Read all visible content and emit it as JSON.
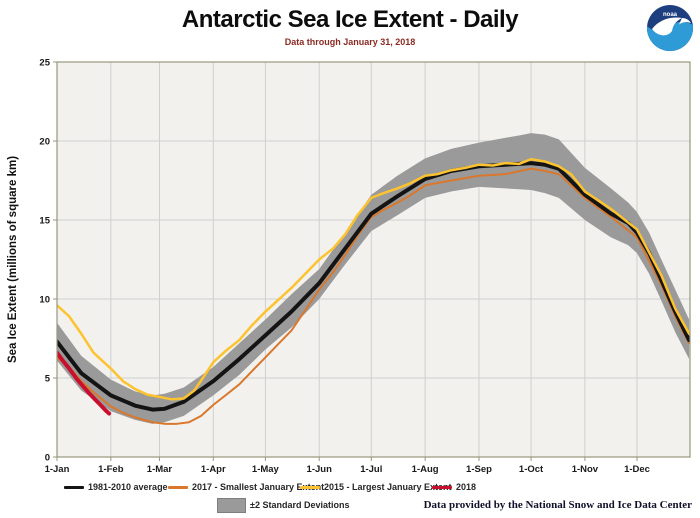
{
  "header": {
    "logo_text": "noaa"
  },
  "footer": {
    "credit": "Data provided by the National Snow and Ice Data Center"
  },
  "colors": {
    "plot_bg": "#f2f1ee",
    "grid": "#cfcfcf",
    "border": "#98987c",
    "band": "#9a9a9a",
    "avg": "#141414",
    "y2017": "#d9782d",
    "y2015": "#fdc32f",
    "y2018": "#c8102e",
    "subtitle": "#8a2a24",
    "logo_dark_blue": "#1e3f7f",
    "logo_light_blue": "#2e9bd6"
  },
  "chart_data": {
    "type": "line",
    "title": "Antarctic Sea Ice Extent - Daily",
    "subtitle": "Data through January 31, 2018",
    "xlabel": "",
    "ylabel": "Sea Ice Extent (millions of square km)",
    "ylim": [
      0,
      25
    ],
    "yticks": [
      0,
      5,
      10,
      15,
      20,
      25
    ],
    "x_unit": "day_of_year",
    "xlim_days": [
      1,
      365.5
    ],
    "xticks": [
      {
        "day": 1,
        "label": "1-Jan"
      },
      {
        "day": 32,
        "label": "1-Feb"
      },
      {
        "day": 60,
        "label": "1-Mar"
      },
      {
        "day": 91,
        "label": "1-Apr"
      },
      {
        "day": 121,
        "label": "1-May"
      },
      {
        "day": 152,
        "label": "1-Jun"
      },
      {
        "day": 182,
        "label": "1-Jul"
      },
      {
        "day": 213,
        "label": "1-Aug"
      },
      {
        "day": 244,
        "label": "1-Sep"
      },
      {
        "day": 274,
        "label": "1-Oct"
      },
      {
        "day": 305,
        "label": "1-Nov"
      },
      {
        "day": 335,
        "label": "1-Dec"
      }
    ],
    "grid": true,
    "legend_position": "bottom",
    "band": {
      "name": "±2 Standard Deviations",
      "days": [
        1,
        15,
        32,
        46,
        56,
        63,
        74,
        91,
        106,
        121,
        136,
        152,
        167,
        182,
        197,
        213,
        228,
        244,
        259,
        267,
        274,
        282,
        290,
        305,
        320,
        330,
        335,
        342,
        349,
        357,
        365
      ],
      "upper": [
        8.5,
        6.4,
        4.9,
        4.15,
        3.9,
        4.0,
        4.4,
        5.7,
        7.2,
        8.7,
        10.3,
        11.9,
        14.2,
        16.6,
        17.8,
        18.9,
        19.5,
        19.9,
        20.2,
        20.35,
        20.5,
        20.4,
        20.1,
        18.3,
        17.0,
        16.1,
        15.5,
        14.2,
        12.5,
        10.6,
        8.7
      ],
      "lower": [
        6.1,
        4.2,
        2.9,
        2.35,
        2.1,
        2.2,
        2.6,
        3.9,
        5.2,
        6.8,
        8.2,
        10.0,
        12.2,
        14.3,
        15.3,
        16.4,
        16.8,
        17.1,
        17.0,
        16.95,
        16.9,
        16.7,
        16.4,
        15.0,
        13.9,
        13.4,
        12.9,
        11.6,
        9.9,
        7.9,
        6.2
      ]
    },
    "series": [
      {
        "name": "1981-2010 average",
        "color_key": "avg",
        "width": 4,
        "days": [
          1,
          15,
          32,
          46,
          56,
          63,
          74,
          91,
          106,
          121,
          136,
          152,
          167,
          182,
          197,
          213,
          228,
          244,
          259,
          267,
          274,
          282,
          290,
          305,
          320,
          330,
          335,
          342,
          349,
          357,
          365
        ],
        "values": [
          7.3,
          5.3,
          3.9,
          3.25,
          3.0,
          3.05,
          3.5,
          4.8,
          6.2,
          7.7,
          9.2,
          11.0,
          13.2,
          15.4,
          16.5,
          17.6,
          18.1,
          18.4,
          18.5,
          18.55,
          18.6,
          18.5,
          18.25,
          16.6,
          15.4,
          14.8,
          14.2,
          12.9,
          11.2,
          9.2,
          7.4
        ]
      },
      {
        "name": "2017 - Smallest January Extent",
        "color_key": "y2017",
        "width": 2,
        "days": [
          1,
          8,
          15,
          22,
          32,
          39,
          46,
          56,
          63,
          70,
          77,
          84,
          91,
          98,
          106,
          113,
          121,
          128,
          136,
          144,
          152,
          160,
          167,
          174,
          182,
          190,
          197,
          205,
          213,
          228,
          244,
          259,
          274,
          282,
          290,
          305,
          320,
          335,
          349,
          357,
          365
        ],
        "values": [
          6.3,
          5.7,
          4.8,
          4.1,
          3.2,
          2.8,
          2.5,
          2.2,
          2.1,
          2.1,
          2.2,
          2.6,
          3.3,
          3.9,
          4.6,
          5.4,
          6.3,
          7.1,
          8.0,
          9.3,
          10.6,
          11.7,
          12.8,
          14.0,
          15.2,
          15.7,
          16.1,
          16.6,
          17.2,
          17.5,
          17.8,
          17.9,
          18.25,
          18.1,
          17.9,
          16.4,
          15.2,
          13.9,
          10.9,
          8.9,
          7.2
        ]
      },
      {
        "name": "2015 - Largest January Extent",
        "color_key": "y2015",
        "width": 2.5,
        "days": [
          1,
          8,
          15,
          22,
          32,
          39,
          46,
          53,
          60,
          67,
          74,
          80,
          85,
          91,
          98,
          106,
          113,
          121,
          128,
          136,
          144,
          152,
          160,
          167,
          174,
          182,
          189,
          197,
          204,
          213,
          220,
          228,
          236,
          244,
          252,
          259,
          267,
          274,
          282,
          290,
          297,
          305,
          320,
          335,
          349,
          357,
          365
        ],
        "values": [
          9.6,
          8.9,
          7.8,
          6.6,
          5.6,
          4.8,
          4.3,
          3.95,
          3.8,
          3.65,
          3.7,
          4.2,
          5.0,
          6.0,
          6.7,
          7.4,
          8.3,
          9.2,
          9.9,
          10.7,
          11.6,
          12.5,
          13.2,
          14.1,
          15.3,
          16.4,
          16.7,
          17.0,
          17.3,
          17.8,
          17.9,
          18.15,
          18.3,
          18.5,
          18.45,
          18.6,
          18.55,
          18.85,
          18.7,
          18.4,
          17.9,
          16.8,
          15.7,
          14.4,
          11.5,
          9.4,
          7.8
        ]
      },
      {
        "name": "2018",
        "color_key": "y2018",
        "width": 4,
        "days": [
          1,
          4,
          8,
          12,
          15,
          19,
          22,
          26,
          29,
          31
        ],
        "values": [
          6.6,
          6.15,
          5.6,
          5.0,
          4.6,
          4.1,
          3.75,
          3.3,
          2.95,
          2.75
        ]
      }
    ]
  }
}
